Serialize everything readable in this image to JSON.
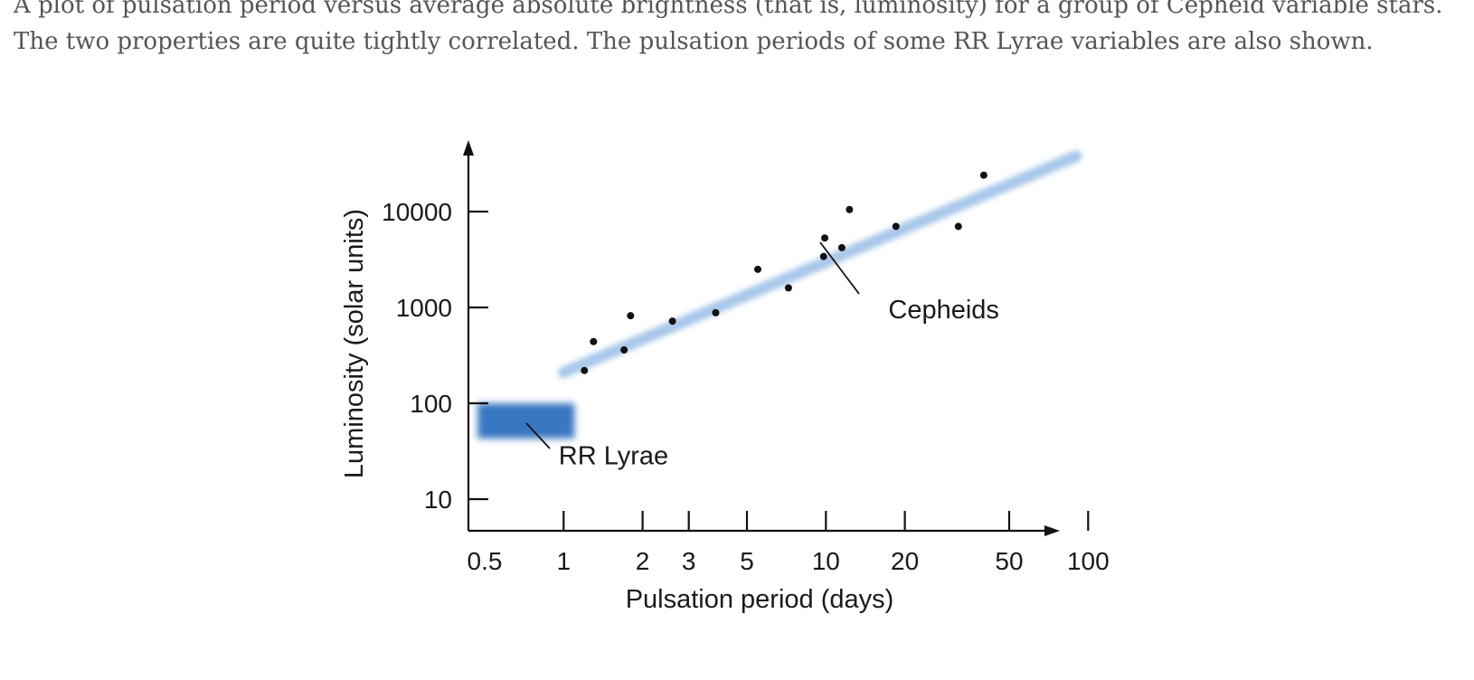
{
  "caption": "A plot of pulsation period versus average absolute brightness (that is, luminosity) for a group of Cepheid variable stars. The two properties are quite tightly correlated. The pulsation periods of some RR Lyrae variables are also shown.",
  "chart_data": {
    "type": "scatter",
    "title": "",
    "xlabel": "Pulsation period (days)",
    "ylabel": "Luminosity (solar units)",
    "xscale": "log",
    "yscale": "log",
    "xticks": [
      0.5,
      1,
      2,
      3,
      5,
      10,
      20,
      50,
      100
    ],
    "xtick_labels": [
      "0.5",
      "1",
      "2",
      "3",
      "5",
      "10",
      "20",
      "50",
      "100"
    ],
    "yticks": [
      10,
      100,
      1000,
      10000
    ],
    "ytick_labels": [
      "10",
      "100",
      "1000",
      "10000"
    ],
    "xlim": [
      0.5,
      200
    ],
    "ylim": [
      7,
      60000
    ],
    "grid": false,
    "colors": {
      "band": "#a9c8ea",
      "rr_lyrae": "#2e6fbf",
      "points": "#111111",
      "axis": "#111111"
    },
    "series": [
      {
        "points": [
          {
            "x": 1.2,
            "y": 220
          },
          {
            "x": 1.3,
            "y": 440
          },
          {
            "x": 1.7,
            "y": 360
          },
          {
            "x": 1.8,
            "y": 820
          },
          {
            "x": 2.6,
            "y": 720
          },
          {
            "x": 3.8,
            "y": 880
          },
          {
            "x": 5.5,
            "y": 2500
          },
          {
            "x": 7.2,
            "y": 1600
          },
          {
            "x": 9.8,
            "y": 3400
          },
          {
            "x": 9.9,
            "y": 5300
          },
          {
            "x": 11.5,
            "y": 4200
          },
          {
            "x": 12.3,
            "y": 10500
          },
          {
            "x": 18.5,
            "y": 7000
          },
          {
            "x": 32,
            "y": 7000
          },
          {
            "x": 40,
            "y": 24000
          }
        ]
      }
    ],
    "cepheid_band": {
      "x": [
        1.0,
        90
      ],
      "y": [
        250,
        45000
      ]
    },
    "rr_lyrae_region": {
      "x": [
        0.5,
        1.0
      ],
      "y": [
        50,
        100
      ]
    },
    "annotations": [
      {
        "text": "Cepheids",
        "x": 30,
        "y": 1000
      },
      {
        "text": "RR Lyrae",
        "x": 1.55,
        "y": 30
      }
    ]
  }
}
